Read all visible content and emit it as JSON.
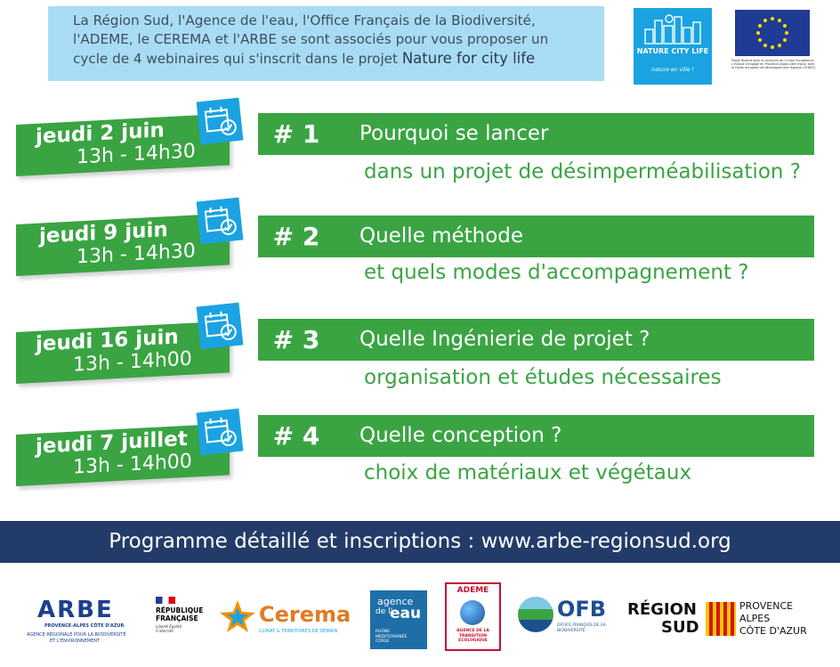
{
  "intro": {
    "lines": [
      "La Région Sud, l'Agence de l'eau, l'Office Français de la Biodiversité,",
      "l'ADEME, le CEREMA et l'ARBE se sont associés pour vous proposer un",
      "cycle de 4 webinaires qui s'inscrit dans le projet "
    ],
    "project": "Nature for city life"
  },
  "logo_nature": {
    "text": "NATURE CITY LIFE",
    "slogan": "nature en ville !"
  },
  "eu_note": "Projet financé avec le concours de l'Union Européenne. L'Europe s'engage en Provence-Alpes-Côte d'Azur avec le Fonds européen de développement régional (FEDER).",
  "sessions": [
    {
      "day": "jeudi 2 juin",
      "time": "13h - 14h30",
      "number": "# 1",
      "q1": "Pourquoi se lancer",
      "q2": "dans un projet de désimperméabilisation ?"
    },
    {
      "day": "jeudi 9 juin",
      "time": "13h - 14h30",
      "number": "# 2",
      "q1": "Quelle méthode",
      "q2": "et quels modes d'accompagnement ?"
    },
    {
      "day": "jeudi 16 juin",
      "time": "13h - 14h00",
      "number": "# 3",
      "q1": "Quelle Ingénierie de projet ?",
      "q2": "organisation et études nécessaires"
    },
    {
      "day": "jeudi 7 juillet",
      "time": "13h - 14h00",
      "number": "# 4",
      "q1": "Quelle conception ?",
      "q2": "choix de matériaux et végétaux"
    }
  ],
  "program": "Programme détaillé et inscriptions : www.arbe-regionsud.org",
  "partners": {
    "arbe": {
      "name": "ARBE",
      "region": "PROVENCE-ALPES CÔTE D'AZUR",
      "tagline1": "AGENCE RÉGIONALE POUR LA BIODIVERSITÉ",
      "tagline2": "ET L'ENVIRONNEMENT"
    },
    "republique": {
      "line1": "RÉPUBLIQUE",
      "line2": "FRANÇAISE",
      "motto": "Liberté Égalité Fraternité"
    },
    "cerema": {
      "name": "Cerema",
      "tagline": "CLIMAT & TERRITOIRES DE DEMAIN"
    },
    "agence_eau": {
      "line1": "agence",
      "line2": "de l'",
      "line3": "eau",
      "sub": "RHÔNE MÉDITERRANÉE CORSE"
    },
    "ademe": {
      "name": "ADEME",
      "sub": "AGENCE DE LA TRANSITION ÉCOLOGIQUE"
    },
    "ofb": {
      "name": "OFB",
      "sub": "OFFICE FRANÇAIS DE LA BIODIVERSITÉ"
    },
    "region_sud": {
      "line1": "RÉGION",
      "line2": "SUD",
      "p1": "PROVENCE",
      "p2": "ALPES",
      "p3": "CÔTE D'AZUR"
    }
  },
  "colors": {
    "green": "#3aa443",
    "blue_box": "#a8dcf5",
    "navy": "#233b68",
    "cyan": "#1aa3e0"
  }
}
